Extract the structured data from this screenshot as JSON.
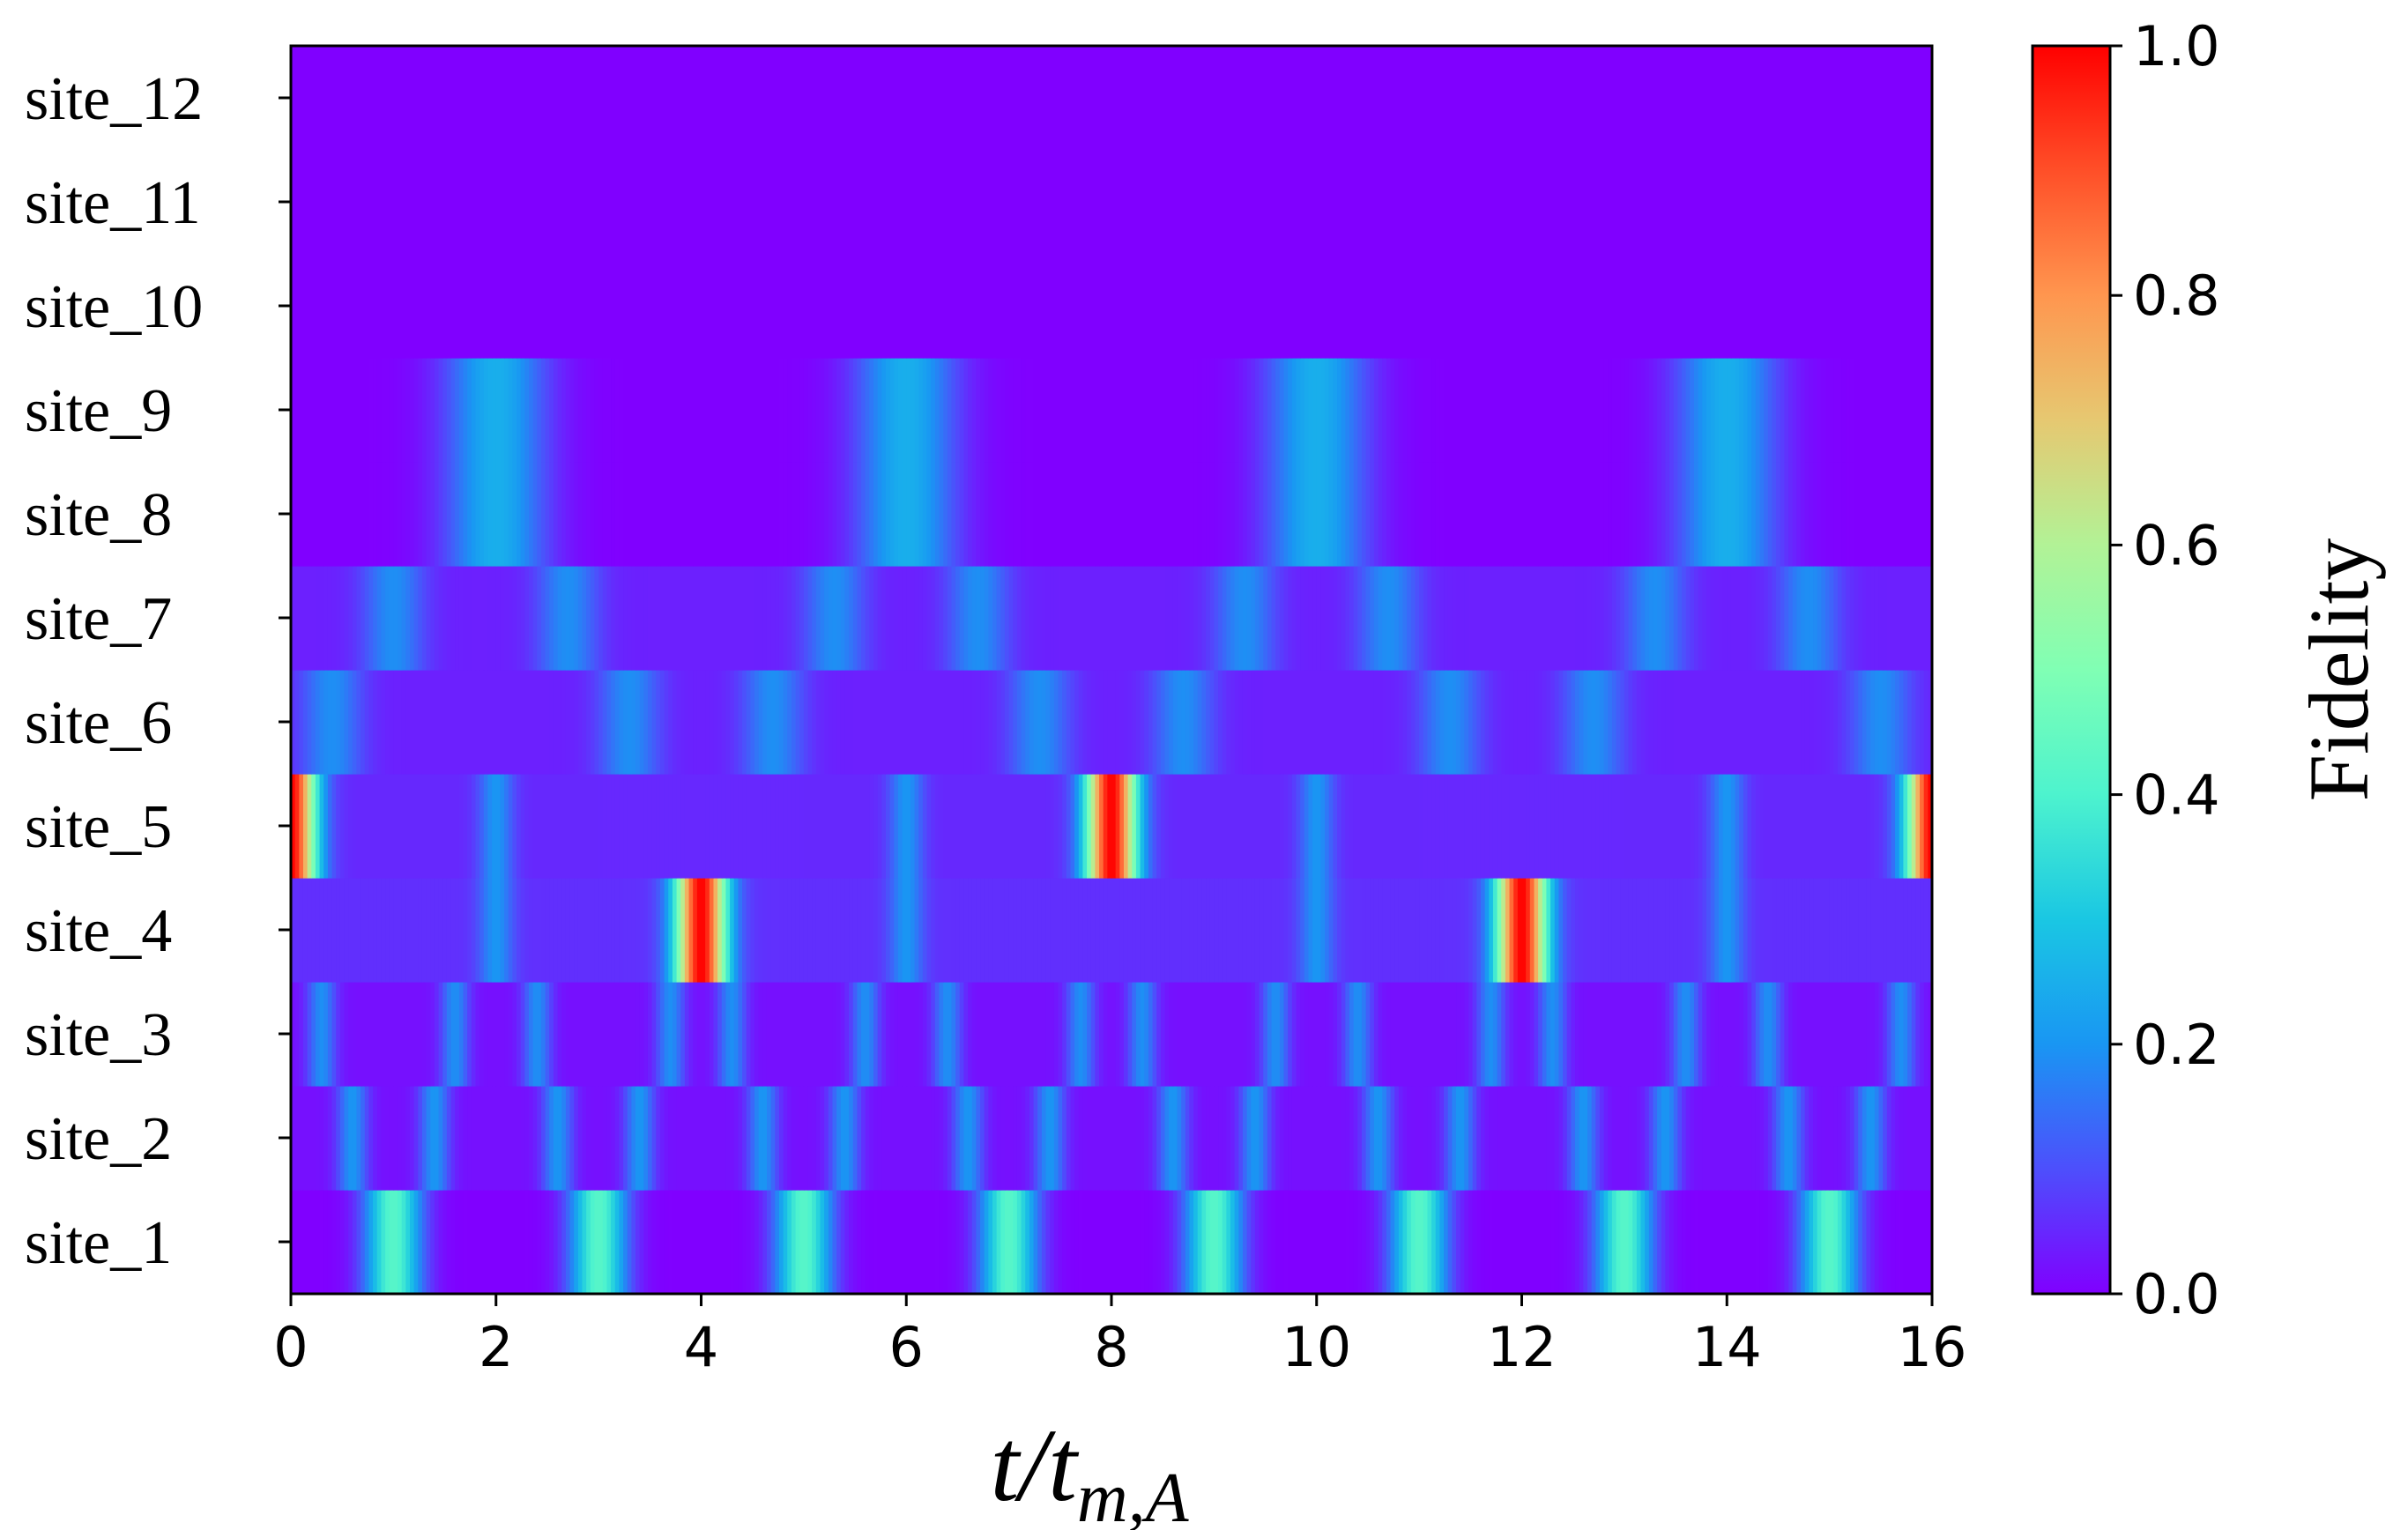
{
  "chart_data": {
    "type": "heatmap",
    "title": "",
    "x_range": [
      0,
      16
    ],
    "x_ticks": [
      "0",
      "2",
      "4",
      "6",
      "8",
      "10",
      "12",
      "14",
      "16"
    ],
    "xlabel": {
      "main": "t/t",
      "subscript": "m,A"
    },
    "y_categories": [
      "site_1",
      "site_2",
      "site_3",
      "site_4",
      "site_5",
      "site_6",
      "site_7",
      "site_8",
      "site_9",
      "site_10",
      "site_11",
      "site_12"
    ],
    "colorbar": {
      "label": "Fidelity",
      "range": [
        0.0,
        1.0
      ],
      "ticks": [
        "0.0",
        "0.2",
        "0.4",
        "0.6",
        "0.8",
        "1.0"
      ],
      "colormap": "rainbow"
    },
    "rows": [
      {
        "site": "site_1",
        "baseline": 0.0,
        "peaks": [
          {
            "t": 1,
            "value": 0.42,
            "width": 0.28
          },
          {
            "t": 3,
            "value": 0.42,
            "width": 0.28
          },
          {
            "t": 5,
            "value": 0.42,
            "width": 0.28
          },
          {
            "t": 7,
            "value": 0.42,
            "width": 0.28
          },
          {
            "t": 9,
            "value": 0.42,
            "width": 0.28
          },
          {
            "t": 11,
            "value": 0.42,
            "width": 0.28
          },
          {
            "t": 13,
            "value": 0.42,
            "width": 0.28
          },
          {
            "t": 15,
            "value": 0.42,
            "width": 0.28
          }
        ]
      },
      {
        "site": "site_2",
        "baseline": 0.02,
        "peaks": [
          {
            "t": 0.6,
            "value": 0.2,
            "width": 0.15
          },
          {
            "t": 1.4,
            "value": 0.2,
            "width": 0.15
          },
          {
            "t": 2.6,
            "value": 0.2,
            "width": 0.15
          },
          {
            "t": 3.4,
            "value": 0.2,
            "width": 0.15
          },
          {
            "t": 4.6,
            "value": 0.2,
            "width": 0.15
          },
          {
            "t": 5.4,
            "value": 0.2,
            "width": 0.15
          },
          {
            "t": 6.6,
            "value": 0.2,
            "width": 0.15
          },
          {
            "t": 7.4,
            "value": 0.2,
            "width": 0.15
          },
          {
            "t": 8.6,
            "value": 0.2,
            "width": 0.15
          },
          {
            "t": 9.4,
            "value": 0.2,
            "width": 0.15
          },
          {
            "t": 10.6,
            "value": 0.2,
            "width": 0.15
          },
          {
            "t": 11.4,
            "value": 0.2,
            "width": 0.15
          },
          {
            "t": 12.6,
            "value": 0.2,
            "width": 0.15
          },
          {
            "t": 13.4,
            "value": 0.2,
            "width": 0.15
          },
          {
            "t": 14.6,
            "value": 0.2,
            "width": 0.15
          },
          {
            "t": 15.4,
            "value": 0.2,
            "width": 0.15
          }
        ]
      },
      {
        "site": "site_3",
        "baseline": 0.02,
        "peaks": [
          {
            "t": 0.3,
            "value": 0.19,
            "width": 0.14
          },
          {
            "t": 1.6,
            "value": 0.19,
            "width": 0.14
          },
          {
            "t": 2.4,
            "value": 0.19,
            "width": 0.14
          },
          {
            "t": 3.7,
            "value": 0.19,
            "width": 0.14
          },
          {
            "t": 4.3,
            "value": 0.19,
            "width": 0.14
          },
          {
            "t": 5.6,
            "value": 0.19,
            "width": 0.14
          },
          {
            "t": 6.4,
            "value": 0.19,
            "width": 0.14
          },
          {
            "t": 7.7,
            "value": 0.19,
            "width": 0.14
          },
          {
            "t": 8.3,
            "value": 0.19,
            "width": 0.14
          },
          {
            "t": 9.6,
            "value": 0.19,
            "width": 0.14
          },
          {
            "t": 10.4,
            "value": 0.19,
            "width": 0.14
          },
          {
            "t": 11.7,
            "value": 0.19,
            "width": 0.14
          },
          {
            "t": 12.3,
            "value": 0.19,
            "width": 0.14
          },
          {
            "t": 13.6,
            "value": 0.19,
            "width": 0.14
          },
          {
            "t": 14.4,
            "value": 0.19,
            "width": 0.14
          },
          {
            "t": 15.7,
            "value": 0.19,
            "width": 0.14
          }
        ]
      },
      {
        "site": "site_4",
        "baseline": 0.06,
        "peaks": [
          {
            "t": 2,
            "value": 0.2,
            "width": 0.17
          },
          {
            "t": 4,
            "value": 1.0,
            "width": 0.25
          },
          {
            "t": 6,
            "value": 0.2,
            "width": 0.17
          },
          {
            "t": 10,
            "value": 0.2,
            "width": 0.17
          },
          {
            "t": 12,
            "value": 1.0,
            "width": 0.25
          },
          {
            "t": 14,
            "value": 0.2,
            "width": 0.17
          }
        ]
      },
      {
        "site": "site_5",
        "baseline": 0.05,
        "peaks": [
          {
            "t": 0,
            "value": 1.0,
            "width": 0.25
          },
          {
            "t": 2,
            "value": 0.2,
            "width": 0.17
          },
          {
            "t": 6,
            "value": 0.2,
            "width": 0.17
          },
          {
            "t": 8,
            "value": 1.0,
            "width": 0.25
          },
          {
            "t": 10,
            "value": 0.2,
            "width": 0.17
          },
          {
            "t": 14,
            "value": 0.2,
            "width": 0.17
          },
          {
            "t": 16,
            "value": 1.0,
            "width": 0.25
          }
        ]
      },
      {
        "site": "site_6",
        "baseline": 0.04,
        "peaks": [
          {
            "t": 0.4,
            "value": 0.19,
            "width": 0.3
          },
          {
            "t": 3.3,
            "value": 0.19,
            "width": 0.3
          },
          {
            "t": 4.7,
            "value": 0.19,
            "width": 0.3
          },
          {
            "t": 7.3,
            "value": 0.19,
            "width": 0.3
          },
          {
            "t": 8.7,
            "value": 0.19,
            "width": 0.3
          },
          {
            "t": 11.3,
            "value": 0.19,
            "width": 0.3
          },
          {
            "t": 12.7,
            "value": 0.19,
            "width": 0.3
          },
          {
            "t": 15.5,
            "value": 0.19,
            "width": 0.3
          }
        ]
      },
      {
        "site": "site_7",
        "baseline": 0.04,
        "peaks": [
          {
            "t": 1.0,
            "value": 0.19,
            "width": 0.3
          },
          {
            "t": 2.7,
            "value": 0.19,
            "width": 0.3
          },
          {
            "t": 5.3,
            "value": 0.19,
            "width": 0.3
          },
          {
            "t": 6.7,
            "value": 0.19,
            "width": 0.3
          },
          {
            "t": 9.3,
            "value": 0.19,
            "width": 0.3
          },
          {
            "t": 10.7,
            "value": 0.19,
            "width": 0.3
          },
          {
            "t": 13.3,
            "value": 0.19,
            "width": 0.3
          },
          {
            "t": 14.8,
            "value": 0.19,
            "width": 0.3
          }
        ]
      },
      {
        "site": "site_8",
        "baseline": 0.0,
        "peaks": [
          {
            "t": 2,
            "value": 0.25,
            "width": 0.5
          },
          {
            "t": 6,
            "value": 0.25,
            "width": 0.5
          },
          {
            "t": 10,
            "value": 0.25,
            "width": 0.5
          },
          {
            "t": 14,
            "value": 0.25,
            "width": 0.5
          }
        ]
      },
      {
        "site": "site_9",
        "baseline": 0.0,
        "peaks": [
          {
            "t": 2,
            "value": 0.25,
            "width": 0.5
          },
          {
            "t": 6,
            "value": 0.25,
            "width": 0.5
          },
          {
            "t": 10,
            "value": 0.25,
            "width": 0.5
          },
          {
            "t": 14,
            "value": 0.25,
            "width": 0.5
          }
        ]
      },
      {
        "site": "site_10",
        "baseline": 0.0,
        "peaks": []
      },
      {
        "site": "site_11",
        "baseline": 0.0,
        "peaks": []
      },
      {
        "site": "site_12",
        "baseline": 0.0,
        "peaks": []
      }
    ]
  }
}
